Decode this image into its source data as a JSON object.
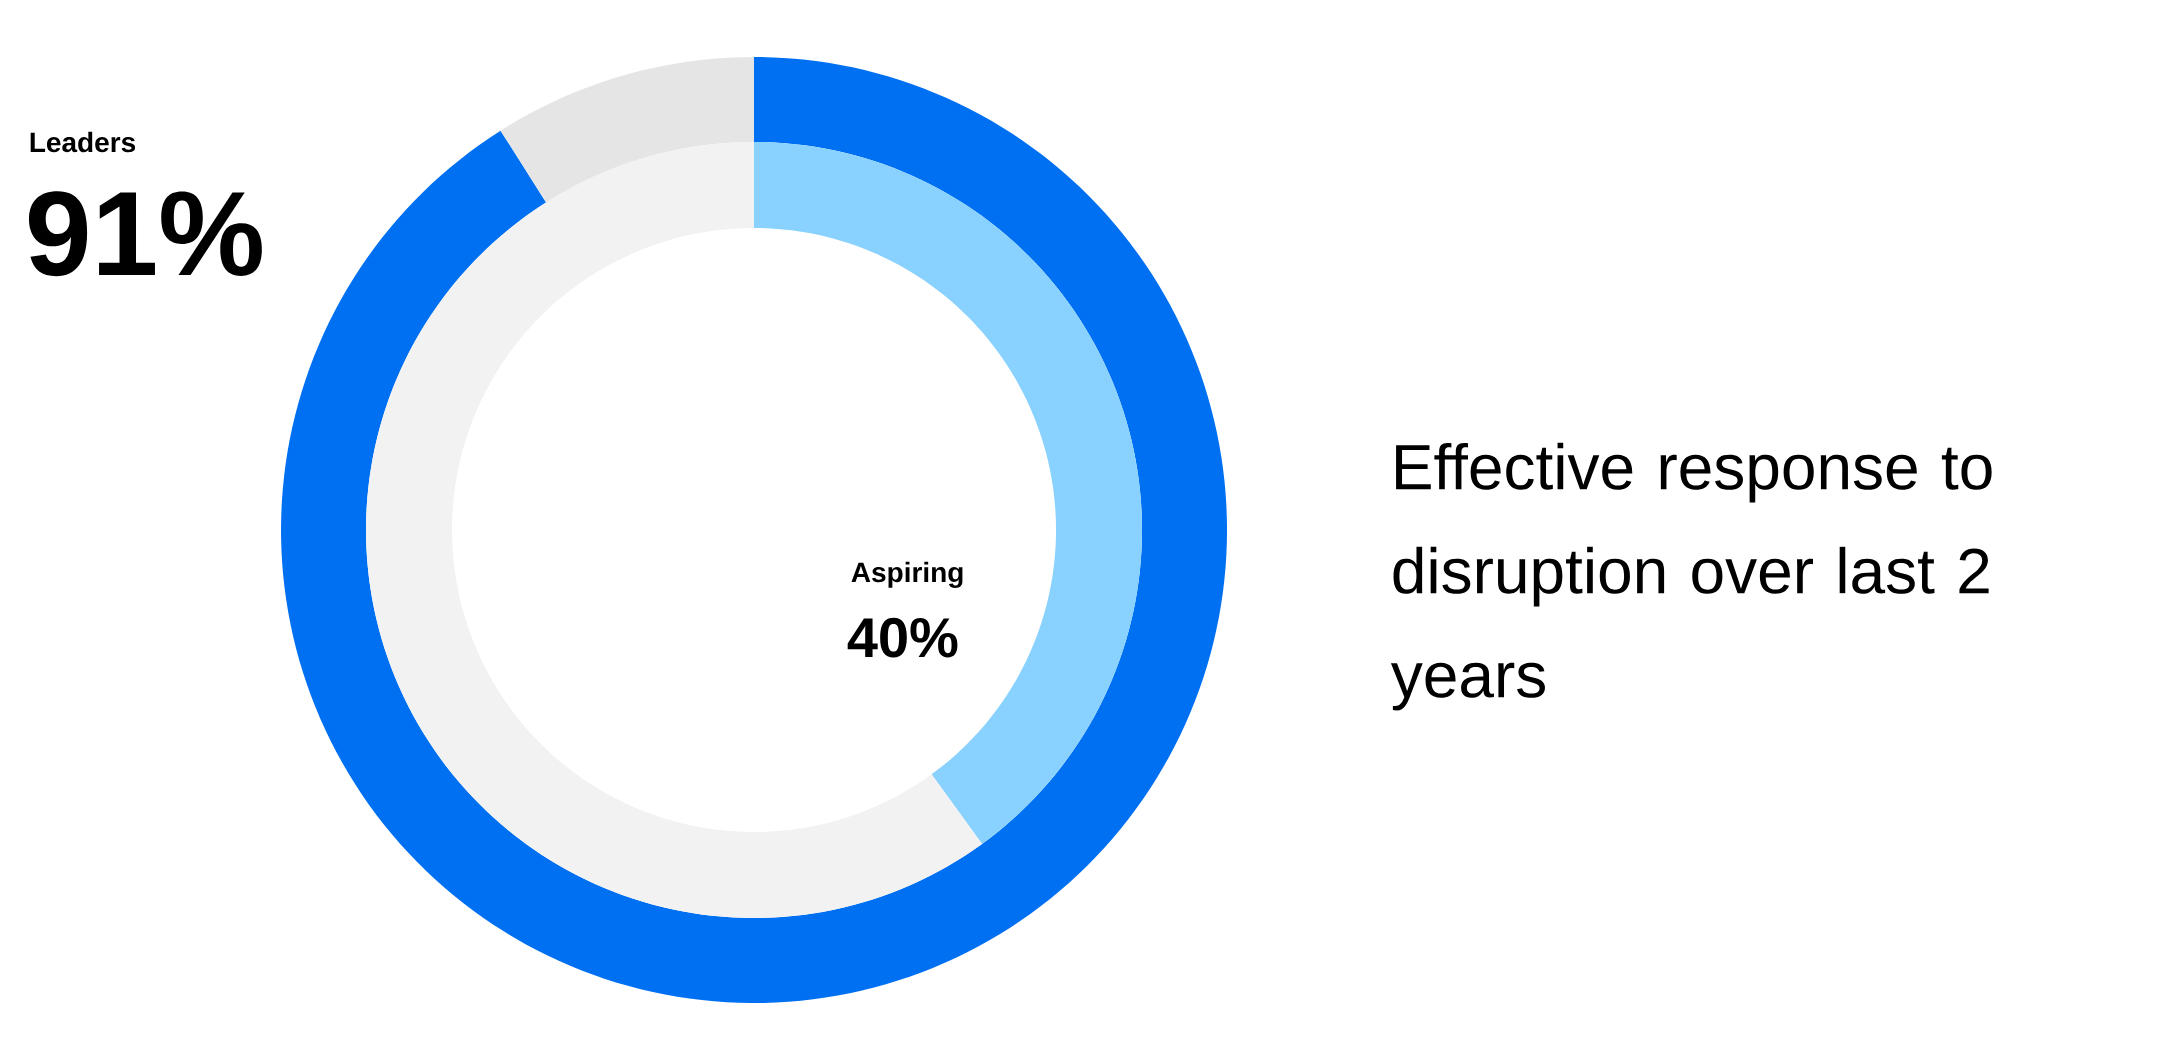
{
  "chart_data": [
    {
      "type": "donut",
      "title": "Effective response to disruption over last 2 years",
      "categories": [
        "Leaders",
        null
      ],
      "values": [
        91,
        9
      ],
      "colors": [
        "#0070f2",
        "#e5e5e5"
      ],
      "value_labels": [
        "91%",
        null
      ]
    },
    {
      "type": "donut",
      "categories": [
        "Aspiring",
        null
      ],
      "values": [
        40,
        60
      ],
      "colors": [
        "#89d1ff",
        "#f2f2f2"
      ],
      "value_labels": [
        "40%",
        null
      ]
    }
  ]
}
